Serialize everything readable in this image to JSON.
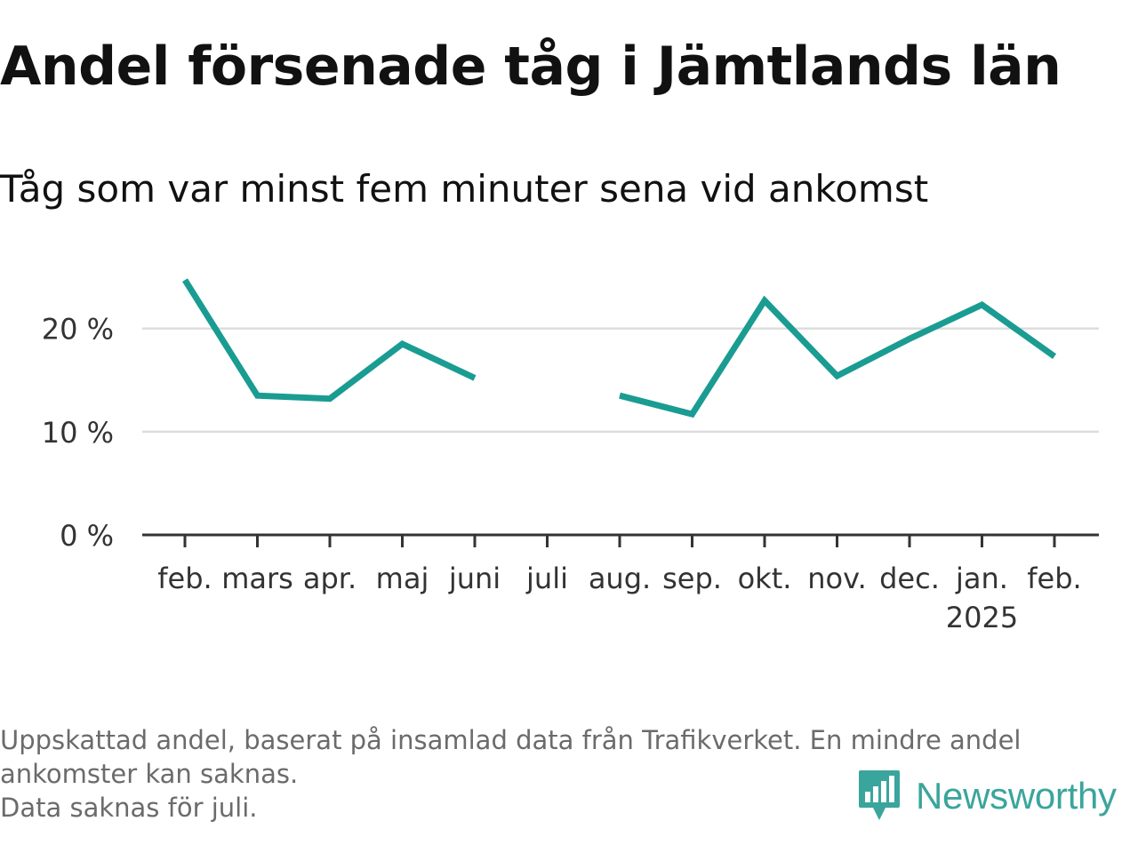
{
  "header": {
    "title": "Andel försenade tåg i Jämtlands län",
    "subtitle": "Tåg som var minst fem minuter sena vid ankomst"
  },
  "chart_data": {
    "type": "line",
    "title": "Andel försenade tåg i Jämtlands län",
    "subtitle": "Tåg som var minst fem minuter sena vid ankomst",
    "categories": [
      "feb.",
      "mars",
      "apr.",
      "maj",
      "juni",
      "juli",
      "aug.",
      "sep.",
      "okt.",
      "nov.",
      "dec.",
      "jan.",
      "feb."
    ],
    "year_label": {
      "category_index": 11,
      "text": "2025"
    },
    "series": [
      {
        "values": [
          24.7,
          13.5,
          13.2,
          18.5,
          15.2,
          null,
          13.5,
          11.7,
          22.7,
          15.4,
          19.0,
          22.3,
          17.3
        ],
        "color": "#1a9c92"
      }
    ],
    "yticks": [
      0,
      10,
      20
    ],
    "ytick_labels": [
      "0 %",
      "10 %",
      "20 %"
    ],
    "ylim": [
      0,
      26
    ],
    "grid": true,
    "legend": "none"
  },
  "notes": [
    "Uppskattad andel, baserat på insamlad data från Trafikverket. En mindre andel",
    "ankomster kan saknas.",
    "Data saknas för juli."
  ],
  "brand": {
    "name": "Newsworthy",
    "icon": "bar-chart-bubble-icon",
    "color": "#3aa59c"
  }
}
